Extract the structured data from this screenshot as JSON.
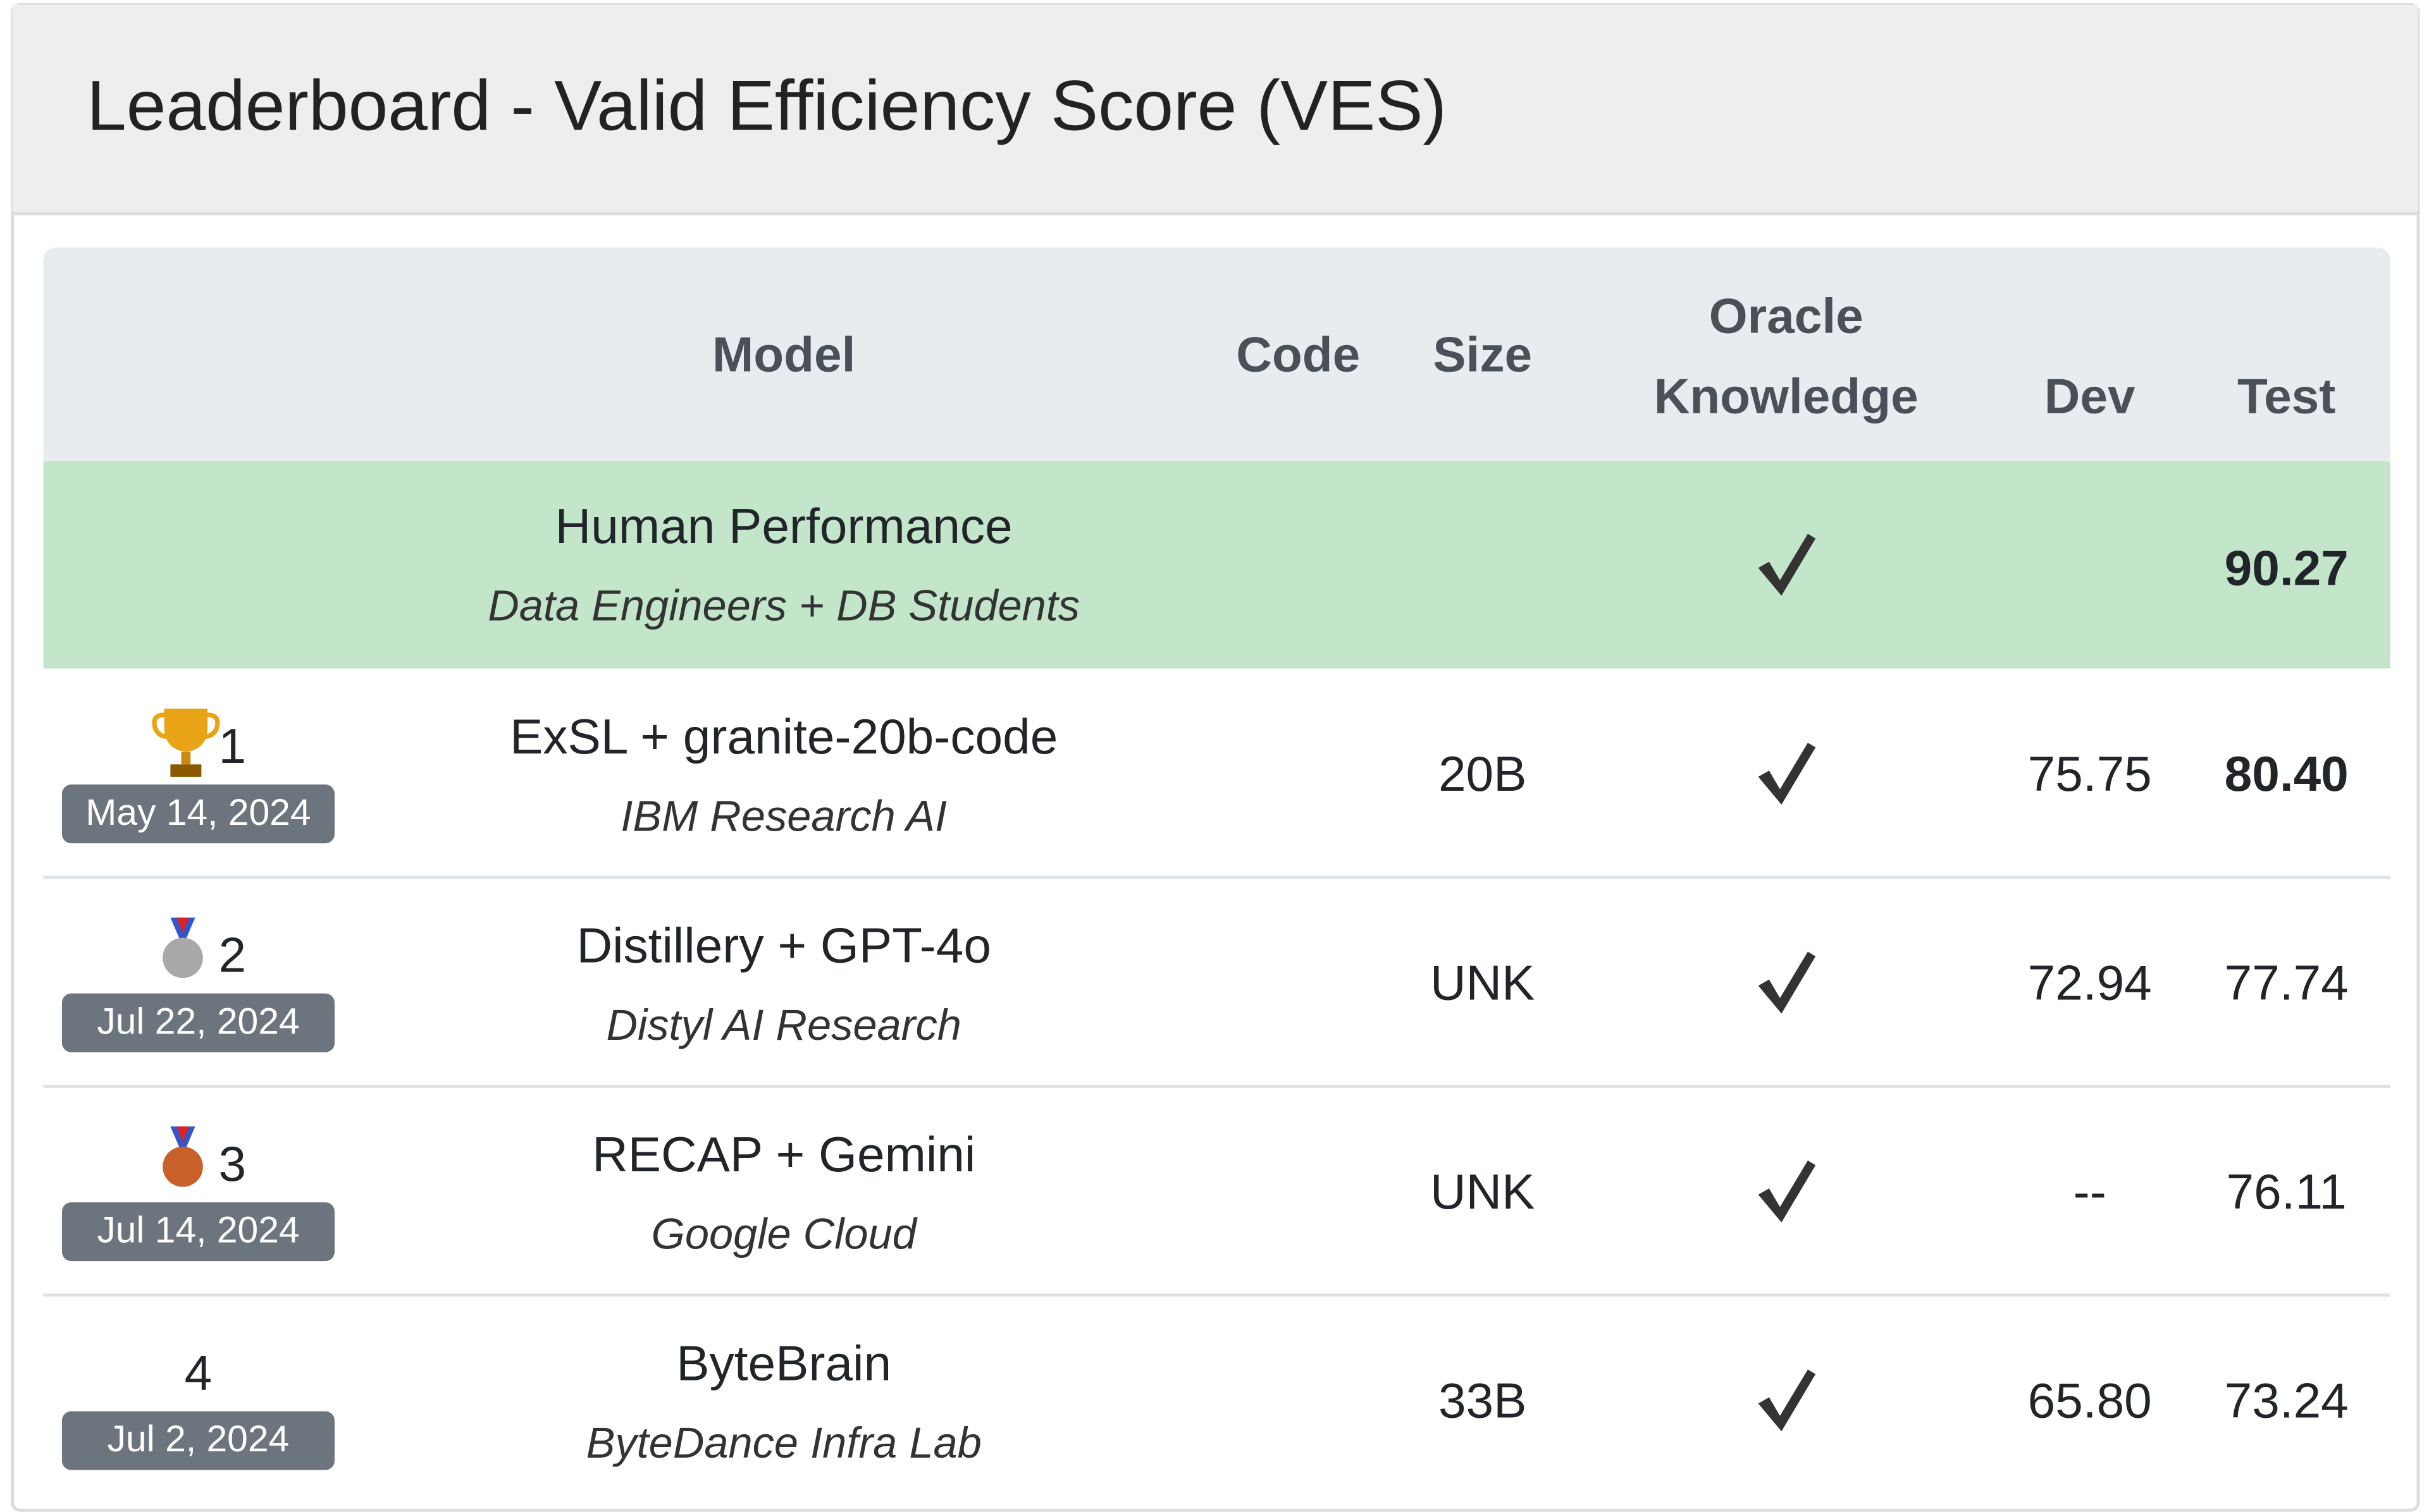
{
  "header": {
    "title": "Leaderboard - Valid Efficiency Score (VES)"
  },
  "table": {
    "columns": [
      "Model",
      "Code",
      "Size",
      "Oracle Knowledge",
      "Dev",
      "Test"
    ],
    "human": {
      "model": "Human Performance",
      "org": "Data Engineers + DB Students",
      "test": "90.27"
    },
    "rows": [
      {
        "rank": 1,
        "date": "May 14, 2024",
        "model": "ExSL + granite-20b-code",
        "org": "IBM Research AI",
        "size": "20B",
        "dev": "75.75",
        "test": "80.40"
      },
      {
        "rank": 2,
        "date": "Jul 22, 2024",
        "model": "Distillery + GPT-4o",
        "org": "Distyl AI Research",
        "size": "UNK",
        "dev": "72.94",
        "test": "77.74"
      },
      {
        "rank": 3,
        "date": "Jul 14, 2024",
        "model": "RECAP + Gemini",
        "org": "Google Cloud",
        "size": "UNK",
        "dev": "--",
        "test": "76.11"
      },
      {
        "rank": 4,
        "date": "Jul 2, 2024",
        "model": "ByteBrain",
        "org": "ByteDance Infra Lab",
        "size": "33B",
        "dev": "65.80",
        "test": "73.24"
      }
    ]
  }
}
